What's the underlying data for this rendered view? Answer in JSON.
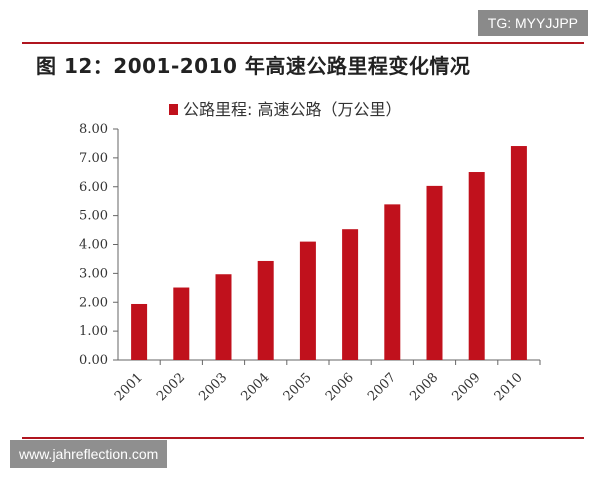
{
  "header": {
    "title": "图 12：2001-2010 年高速公路里程变化情况",
    "badge": "TG: MYYJJPP"
  },
  "footer": {
    "watermark": "www.jahreflection.com"
  },
  "chart_data": {
    "type": "bar",
    "categories": [
      "2001",
      "2002",
      "2003",
      "2004",
      "2005",
      "2006",
      "2007",
      "2008",
      "2009",
      "2010"
    ],
    "series": [
      {
        "name": "公路里程: 高速公路（万公里）",
        "values": [
          1.94,
          2.51,
          2.97,
          3.43,
          4.1,
          4.53,
          5.39,
          6.03,
          6.51,
          7.41
        ]
      }
    ],
    "ylim": [
      0,
      8
    ],
    "yticks": [
      "0.00",
      "1.00",
      "2.00",
      "3.00",
      "4.00",
      "5.00",
      "6.00",
      "7.00",
      "8.00"
    ],
    "bar_color": "#c0111c",
    "legend_position": "top",
    "grid": false
  }
}
